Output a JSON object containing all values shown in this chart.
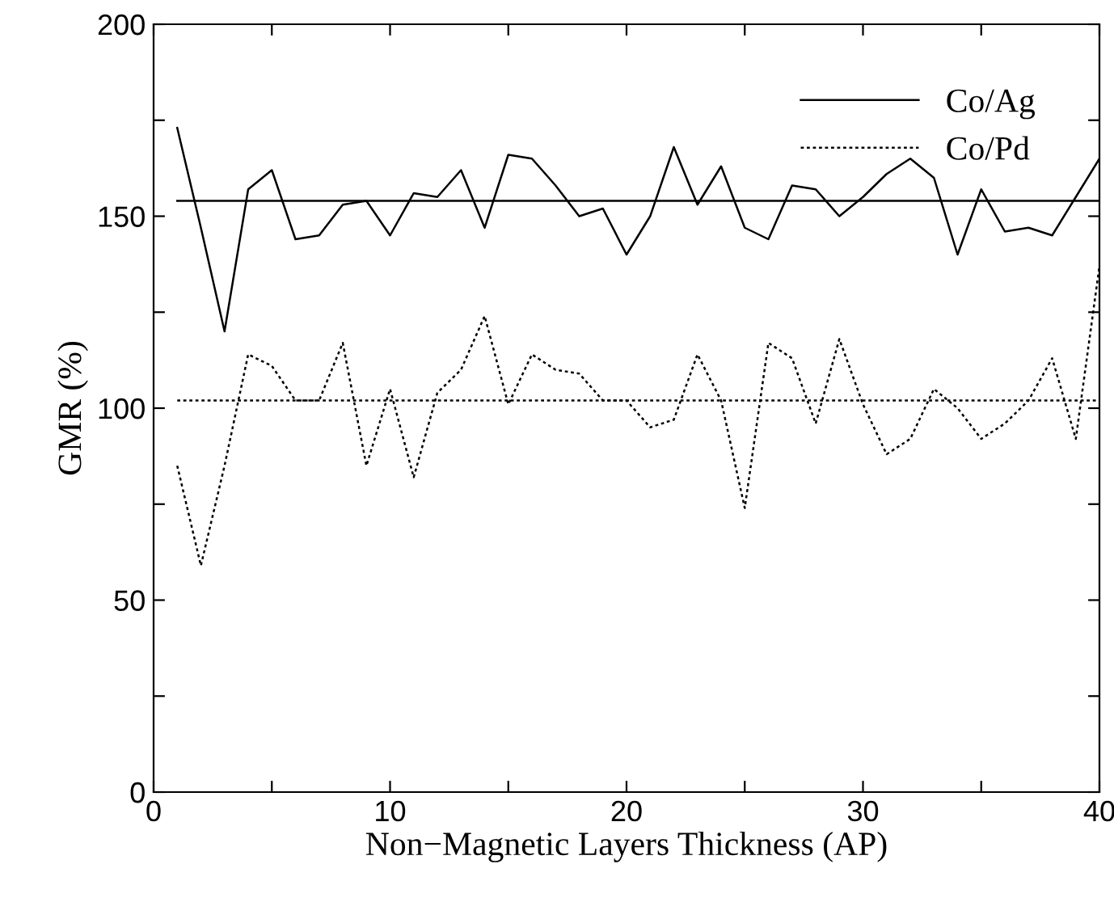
{
  "chart_data": {
    "type": "line",
    "xlabel": "Non−Magnetic Layers Thickness (AP)",
    "ylabel": "GMR (%)",
    "x": [
      1,
      2,
      3,
      4,
      5,
      6,
      7,
      8,
      9,
      10,
      11,
      12,
      13,
      14,
      15,
      16,
      17,
      18,
      19,
      20,
      21,
      22,
      23,
      24,
      25,
      26,
      27,
      28,
      29,
      30,
      31,
      32,
      33,
      34,
      35,
      36,
      37,
      38,
      39,
      40
    ],
    "series": [
      {
        "name": "Co/Ag",
        "color": "#000000",
        "line_style": "solid",
        "values": [
          173,
          147,
          120,
          157,
          162,
          144,
          145,
          153,
          154,
          145,
          156,
          155,
          162,
          147,
          166,
          165,
          158,
          150,
          152,
          140,
          150,
          168,
          153,
          163,
          147,
          144,
          158,
          157,
          150,
          155,
          161,
          165,
          160,
          140,
          157,
          146,
          147,
          145,
          155,
          165
        ]
      },
      {
        "name": "Co/Pd",
        "color": "#000000",
        "line_style": "dotted",
        "values": [
          85,
          59,
          85,
          114,
          111,
          102,
          102,
          117,
          85,
          105,
          82,
          104,
          110,
          124,
          101,
          114,
          110,
          109,
          102,
          102,
          95,
          97,
          114,
          102,
          74,
          117,
          113,
          96,
          118,
          101,
          88,
          92,
          105,
          100,
          92,
          96,
          102,
          113,
          92,
          137
        ]
      }
    ],
    "ref_lines": [
      {
        "axis": "y",
        "value": 154,
        "color": "#000000",
        "line_style": "solid"
      },
      {
        "axis": "y",
        "value": 102,
        "color": "#000000",
        "line_style": "dotted"
      }
    ],
    "xlim": [
      0,
      40
    ],
    "xticks": [
      0,
      {
        "value": 5,
        "label": null
      },
      10,
      {
        "value": 15,
        "label": null
      },
      20,
      {
        "value": 25,
        "label": null
      },
      30,
      {
        "value": 35,
        "label": null
      },
      40
    ],
    "ylim": [
      0,
      200
    ],
    "yticks": [
      0,
      {
        "value": 25,
        "label": null
      },
      50,
      {
        "value": 75,
        "label": null
      },
      100,
      {
        "value": 125,
        "label": null
      },
      150,
      {
        "value": 175,
        "label": null
      },
      200
    ],
    "grid": false,
    "legend": "top right",
    "marker": "none"
  }
}
